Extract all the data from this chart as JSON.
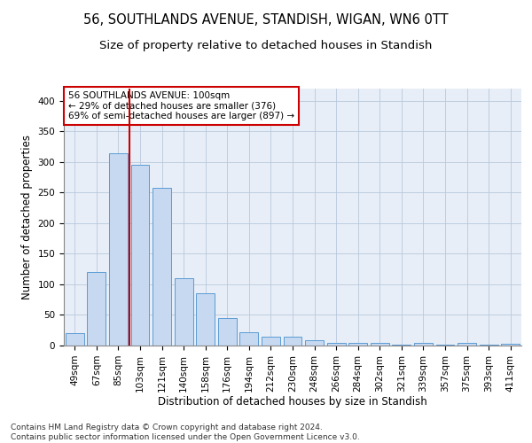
{
  "title1": "56, SOUTHLANDS AVENUE, STANDISH, WIGAN, WN6 0TT",
  "title2": "Size of property relative to detached houses in Standish",
  "xlabel": "Distribution of detached houses by size in Standish",
  "ylabel": "Number of detached properties",
  "categories": [
    "49sqm",
    "67sqm",
    "85sqm",
    "103sqm",
    "121sqm",
    "140sqm",
    "158sqm",
    "176sqm",
    "194sqm",
    "212sqm",
    "230sqm",
    "248sqm",
    "266sqm",
    "284sqm",
    "302sqm",
    "321sqm",
    "339sqm",
    "357sqm",
    "375sqm",
    "393sqm",
    "411sqm"
  ],
  "values": [
    20,
    120,
    315,
    295,
    258,
    110,
    85,
    45,
    22,
    15,
    15,
    8,
    5,
    4,
    4,
    2,
    4,
    2,
    4,
    1,
    3
  ],
  "bar_color": "#c6d9f0",
  "bar_edge_color": "#5b9bd5",
  "vline_x_index": 2.5,
  "vline_color": "#cc0000",
  "annotation_box_text": "56 SOUTHLANDS AVENUE: 100sqm\n← 29% of detached houses are smaller (376)\n69% of semi-detached houses are larger (897) →",
  "annotation_box_color": "#cc0000",
  "ylim": [
    0,
    420
  ],
  "yticks": [
    0,
    50,
    100,
    150,
    200,
    250,
    300,
    350,
    400
  ],
  "background_color": "#ffffff",
  "plot_bg_color": "#e8eef7",
  "grid_color": "#b8c8dc",
  "footer_text": "Contains HM Land Registry data © Crown copyright and database right 2024.\nContains public sector information licensed under the Open Government Licence v3.0.",
  "title1_fontsize": 10.5,
  "title2_fontsize": 9.5,
  "xlabel_fontsize": 8.5,
  "ylabel_fontsize": 8.5,
  "tick_fontsize": 7.5,
  "annotation_fontsize": 7.5,
  "footer_fontsize": 6.5
}
